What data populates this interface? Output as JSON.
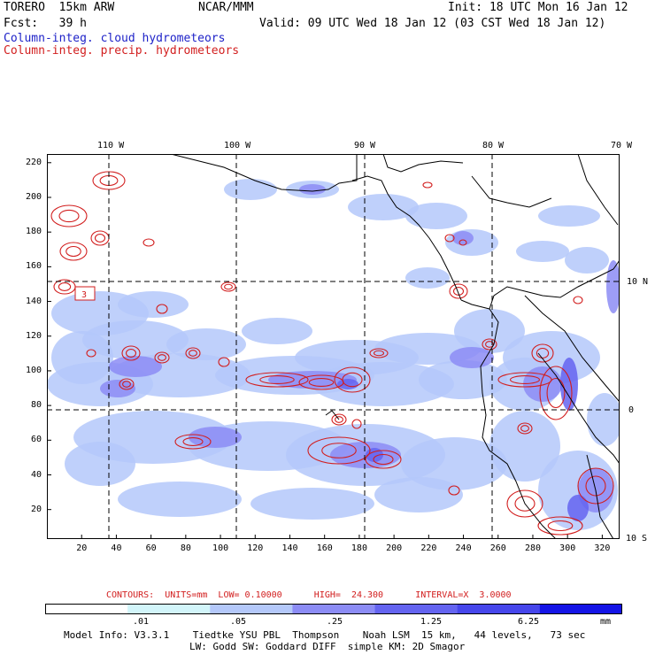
{
  "header": {
    "model": "TORERO  15km ARW",
    "org": "NCAR/MMM",
    "init": "Init: 18 UTC Mon 16 Jan 12",
    "fcst": "Fcst:   39 h",
    "valid": "Valid: 09 UTC Wed 18 Jan 12 (03 CST Wed 18 Jan 12)",
    "field1": "Column-integ. cloud hydrometeors",
    "field2": "Column-integ. precip. hydrometeors"
  },
  "map": {
    "lon_labels": [
      "110 W",
      "100 W",
      "90 W",
      "80 W",
      "70 W"
    ],
    "lat_labels": [
      "10 N",
      "0",
      "10 S"
    ],
    "x_ticks": [
      "20",
      "40",
      "60",
      "80",
      "100",
      "120",
      "140",
      "160",
      "180",
      "200",
      "220",
      "240",
      "260",
      "280",
      "300",
      "320"
    ],
    "y_ticks": [
      "20",
      "40",
      "60",
      "80",
      "100",
      "120",
      "140",
      "160",
      "180",
      "200",
      "220"
    ],
    "contour_label": "3"
  },
  "contours": {
    "summary": "CONTOURS:  UNITS=mm  LOW= 0.10000      HIGH=  24.300      INTERVAL=X  3.0000"
  },
  "colorbar": {
    "labels": [
      ".01",
      ".05",
      ".25",
      "1.25",
      "6.25"
    ],
    "units": "mm",
    "colors": [
      "#ffffff",
      "#d2f5fa",
      "#b4c8fa",
      "#8c8cf5",
      "#6464f0",
      "#4646eb",
      "#1414e6"
    ]
  },
  "footer": {
    "line1": "Model Info: V3.3.1    Tiedtke YSU PBL  Thompson    Noah LSM  15 km,   44 levels,   73 sec",
    "line2": "LW: Godd SW: Goddard DIFF  simple KM: 2D Smagor"
  },
  "colors": {
    "cloud": "#1e22c8",
    "precip": "#d21e1e",
    "shade_light": "#b4c8fa",
    "shade_mid": "#8c8cf5",
    "shade_dark": "#6464f0"
  }
}
